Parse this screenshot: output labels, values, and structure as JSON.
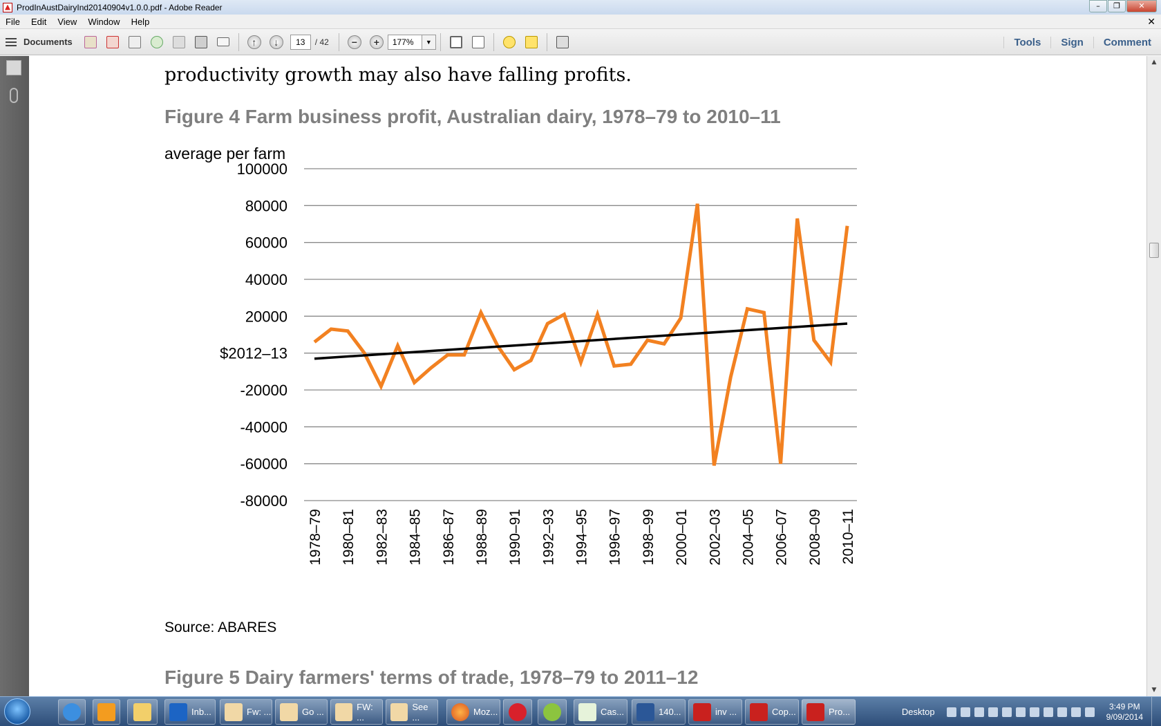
{
  "window": {
    "title": "ProdInAustDairyInd20140904v1.0.0.pdf - Adobe Reader"
  },
  "menu": [
    "File",
    "Edit",
    "View",
    "Window",
    "Help"
  ],
  "toolbar": {
    "documents_label": "Documents",
    "page_current": "13",
    "page_total": "/ 42",
    "zoom": "177%",
    "tools_label": "Tools",
    "sign_label": "Sign",
    "comment_label": "Comment"
  },
  "document": {
    "body_text": "productivity growth may also have falling profits.",
    "figure4_title": "Figure 4 Farm business profit, Australian dairy, 1978–79 to 2010–11",
    "y_caption": "average per farm",
    "source": "Source: ABARES",
    "figure5_title": "Figure 5 Dairy farmers' terms of trade, 1978–79 to 2011–12"
  },
  "chart_data": {
    "type": "line",
    "ylim": [
      -80000,
      100000
    ],
    "yticks": [
      "100000",
      "80000",
      "60000",
      "40000",
      "20000",
      "$2012–13",
      "-20000",
      "-40000",
      "-60000",
      "-80000"
    ],
    "ytick_values": [
      100000,
      80000,
      60000,
      40000,
      20000,
      0,
      -20000,
      -40000,
      -60000,
      -80000
    ],
    "xtick_labels": [
      "1978–79",
      "1980–81",
      "1982–83",
      "1984–85",
      "1986–87",
      "1988–89",
      "1990–91",
      "1992–93",
      "1994–95",
      "1996–97",
      "1998–99",
      "2000–01",
      "2002–03",
      "2004–05",
      "2006–07",
      "2008–09",
      "2010–11"
    ],
    "grid": true,
    "series": [
      {
        "color": "#f28121",
        "values": [
          6000,
          13000,
          12000,
          0,
          -18000,
          4000,
          -16000,
          -8000,
          -1000,
          -1000,
          22000,
          4000,
          -9000,
          -4000,
          16000,
          21000,
          -5000,
          21000,
          -7000,
          -6000,
          7000,
          5000,
          19000,
          81000,
          -61000,
          -13000,
          24000,
          22000,
          -60000,
          73000,
          7000,
          -5000,
          69000
        ]
      },
      {
        "color": "#000000",
        "values": [
          -3000,
          16000
        ]
      }
    ]
  },
  "taskbar": {
    "items": [
      "Inb...",
      "Fw: ...",
      "Go ...",
      "FW: ...",
      "See ...",
      "Moz...",
      "Cas...",
      "140...",
      "inv ...",
      "Cop...",
      "Pro..."
    ],
    "desktop_label": "Desktop",
    "time": "3:49 PM",
    "date": "9/09/2014"
  }
}
